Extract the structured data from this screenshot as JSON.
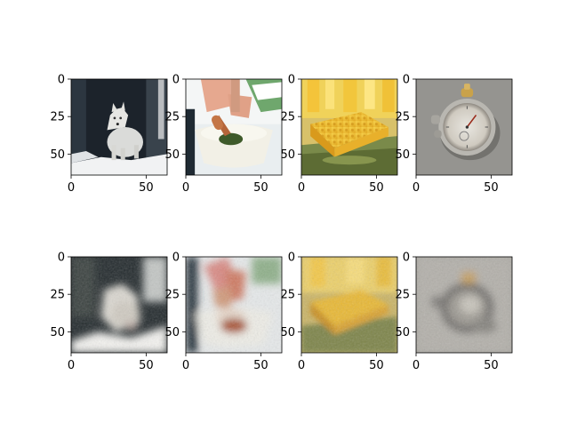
{
  "figure": {
    "rows": [
      {
        "name": "original-row",
        "panels": [
          {
            "subject": "arctic wolf in snow",
            "icon": "wolf-photo"
          },
          {
            "subject": "hands with pestle in mortar",
            "icon": "mortar-pestle-photo"
          },
          {
            "subject": "yellow honeycomb wafer",
            "icon": "honeycomb-photo"
          },
          {
            "subject": "stopwatch on grey surface",
            "icon": "stopwatch-photo"
          }
        ]
      },
      {
        "name": "reconstruction-row",
        "panels": [
          {
            "subject": "blurry reconstructed wolf",
            "icon": "wolf-reconstruction"
          },
          {
            "subject": "blurry reconstructed mortar",
            "icon": "mortar-reconstruction"
          },
          {
            "subject": "blurry reconstructed honeycomb",
            "icon": "honeycomb-reconstruction"
          },
          {
            "subject": "blurry reconstructed stopwatch",
            "icon": "stopwatch-reconstruction"
          }
        ]
      }
    ],
    "x_ticks": [
      "0",
      "50"
    ],
    "y_ticks": [
      "0",
      "25",
      "50"
    ]
  },
  "colors": {
    "axes": "#000000",
    "background": "#ffffff"
  }
}
